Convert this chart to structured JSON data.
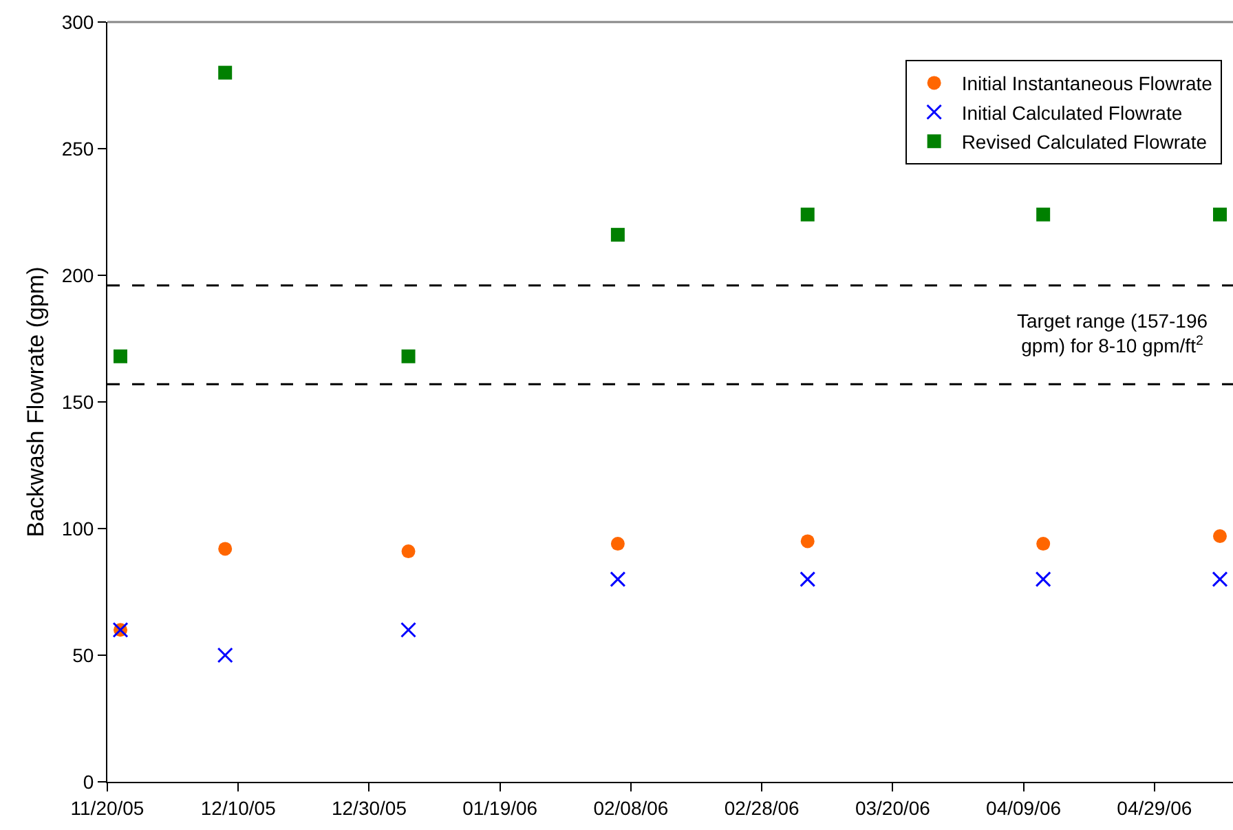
{
  "chart_data": {
    "type": "scatter",
    "ylabel": "Backwash Flowrate (gpm)",
    "x": [
      "2005-11-22",
      "2005-12-08",
      "2006-01-05",
      "2006-02-06",
      "2006-03-07",
      "2006-04-12",
      "2006-05-09"
    ],
    "series": [
      {
        "name": "Initial Instantaneous Flowrate",
        "color": "#ff6600",
        "marker": "circle",
        "values": [
          60,
          92,
          91,
          94,
          95,
          94,
          97
        ]
      },
      {
        "name": "Initial Calculated Flowrate",
        "color": "#0000ff",
        "marker": "cross",
        "values": [
          60,
          50,
          60,
          80,
          80,
          80,
          80
        ]
      },
      {
        "name": "Revised Calculated Flowrate",
        "color": "#008000",
        "marker": "square",
        "values": [
          168,
          280,
          168,
          216,
          224,
          224,
          224
        ]
      }
    ],
    "xlim": [
      "2005-11-20",
      "2006-05-11"
    ],
    "xticks": [
      {
        "value": "2005-11-20",
        "label": "11/20/05"
      },
      {
        "value": "2005-12-10",
        "label": "12/10/05"
      },
      {
        "value": "2005-12-30",
        "label": "12/30/05"
      },
      {
        "value": "2006-01-19",
        "label": "01/19/06"
      },
      {
        "value": "2006-02-08",
        "label": "02/08/06"
      },
      {
        "value": "2006-02-28",
        "label": "02/28/06"
      },
      {
        "value": "2006-03-20",
        "label": "03/20/06"
      },
      {
        "value": "2006-04-09",
        "label": "04/09/06"
      },
      {
        "value": "2006-04-29",
        "label": "04/29/06"
      }
    ],
    "ylim": [
      0,
      300
    ],
    "yticks": [
      0,
      50,
      100,
      150,
      200,
      250,
      300
    ],
    "ref_lines": [
      {
        "axis": "y",
        "value": 196,
        "color": "#000000",
        "line_style": "dashed"
      },
      {
        "axis": "y",
        "value": 157,
        "color": "#000000",
        "line_style": "dashed"
      }
    ],
    "annotations": [
      "Target range (157-196 gpm) for 8-10 gpm/ft$^{2}$"
    ],
    "legend": "top right",
    "grid": false
  }
}
